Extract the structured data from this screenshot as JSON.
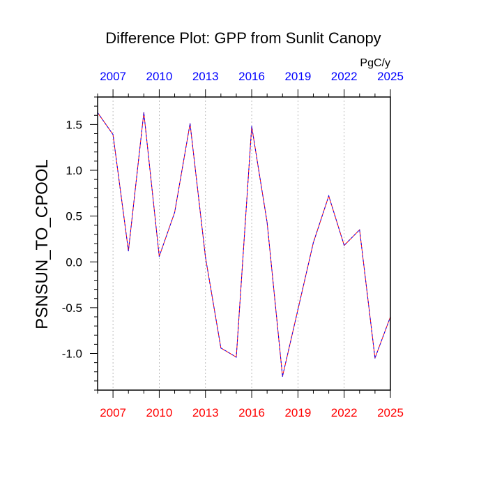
{
  "chart_data": {
    "type": "line",
    "title": "Difference Plot: GPP from Sunlit Canopy",
    "units": "PgC/y",
    "ylabel": "PSNSUN_TO_CPOOL",
    "xlabel": "",
    "xlim": [
      2006,
      2025
    ],
    "ylim": [
      -1.4,
      1.8
    ],
    "grid": "vertical dashed at major x ticks",
    "x_major_ticks": [
      2007,
      2010,
      2013,
      2016,
      2019,
      2022,
      2025
    ],
    "x_tick_labels_bottom": [
      "2007",
      "2010",
      "2013",
      "2016",
      "2019",
      "2022",
      "2025"
    ],
    "x_tick_labels_top": [
      "2007",
      "2010",
      "2013",
      "2016",
      "2019",
      "2022",
      "2025"
    ],
    "y_major_ticks": [
      -1.0,
      -0.5,
      0.0,
      0.5,
      1.0,
      1.5
    ],
    "y_tick_labels": [
      "-1.0",
      "-0.5",
      "0.0",
      "0.5",
      "1.0",
      "1.5"
    ],
    "colors": {
      "bottom_axis_labels": "#ff0000",
      "top_axis_labels": "#0000ff",
      "line_primary": "#ff0000",
      "line_secondary": "#0000ff",
      "grid": "#aaaaaa",
      "axis": "#000000"
    },
    "series": [
      {
        "x": [
          2006,
          2007,
          2008,
          2009,
          2010,
          2011,
          2012,
          2013,
          2014,
          2015,
          2016,
          2017,
          2018,
          2019,
          2020,
          2021,
          2022,
          2023,
          2024,
          2025
        ],
        "values": [
          1.63,
          1.39,
          0.12,
          1.63,
          0.06,
          0.54,
          1.51,
          0.05,
          -0.94,
          -1.04,
          1.48,
          0.43,
          -1.25,
          -0.52,
          0.21,
          0.72,
          0.18,
          0.35,
          -1.05,
          -0.6
        ]
      }
    ]
  }
}
